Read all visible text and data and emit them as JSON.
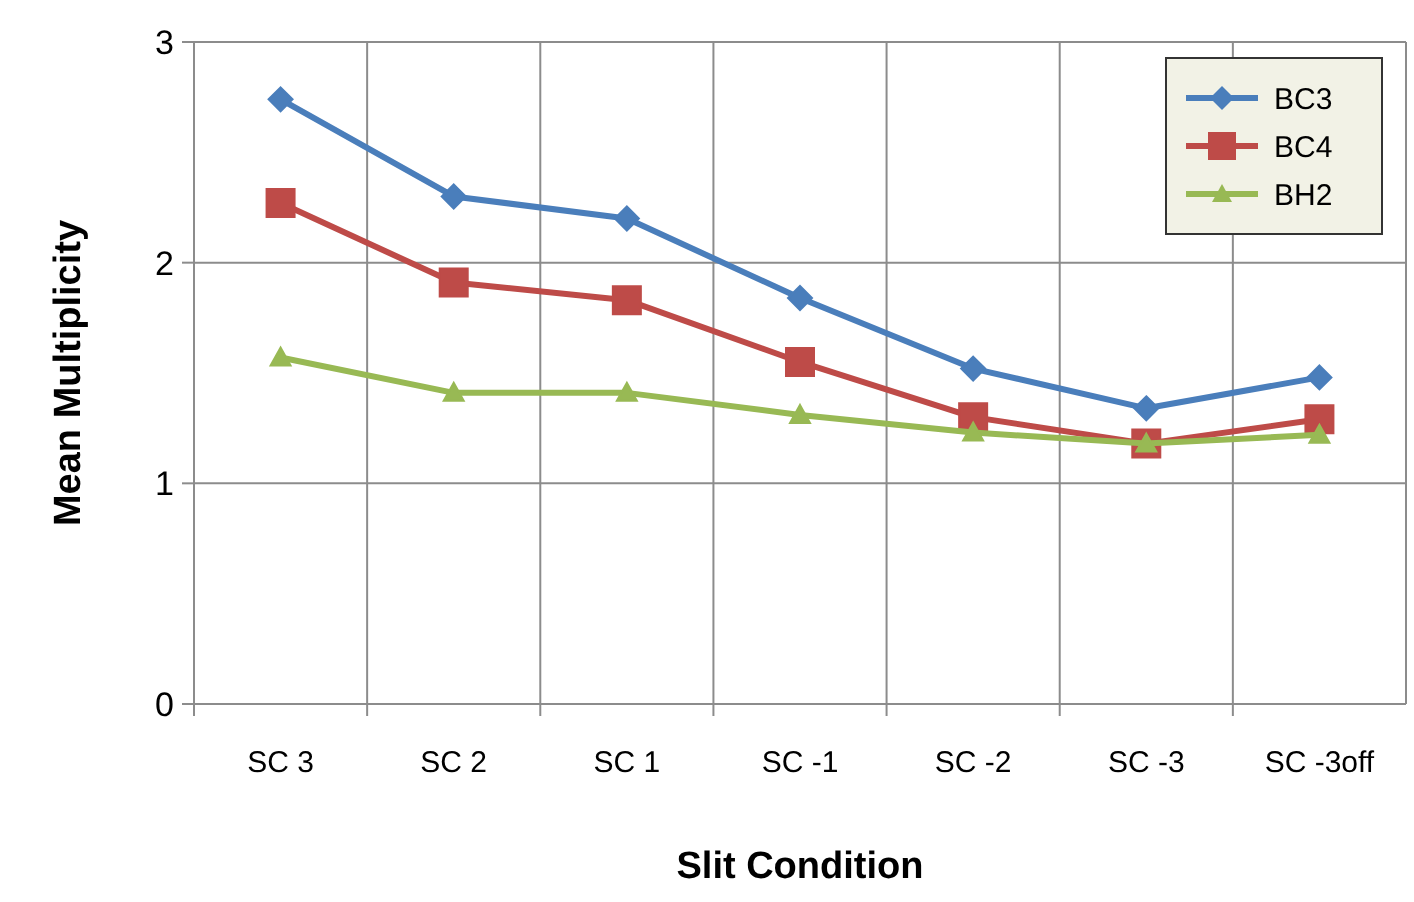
{
  "chart_data": {
    "type": "line",
    "xlabel": "Slit Condition",
    "ylabel": "Mean Multiplicity",
    "categories": [
      "SC 3",
      "SC 2",
      "SC 1",
      "SC -1",
      "SC -2",
      "SC -3",
      "SC -3off"
    ],
    "ylim": [
      0,
      3
    ],
    "yticks": [
      0,
      1,
      2,
      3
    ],
    "grid": true,
    "legend": "top right",
    "line_style": "solid",
    "series": [
      {
        "name": "BC3",
        "color": "#4a7ebb",
        "marker": "diamond",
        "values": [
          2.74,
          2.3,
          2.2,
          1.84,
          1.52,
          1.34,
          1.48
        ]
      },
      {
        "name": "BC4",
        "color": "#be4b48",
        "marker": "square",
        "values": [
          2.27,
          1.91,
          1.83,
          1.55,
          1.3,
          1.18,
          1.29
        ]
      },
      {
        "name": "BH2",
        "color": "#98b954",
        "marker": "triangle",
        "values": [
          1.57,
          1.41,
          1.41,
          1.31,
          1.23,
          1.18,
          1.22
        ]
      }
    ]
  }
}
